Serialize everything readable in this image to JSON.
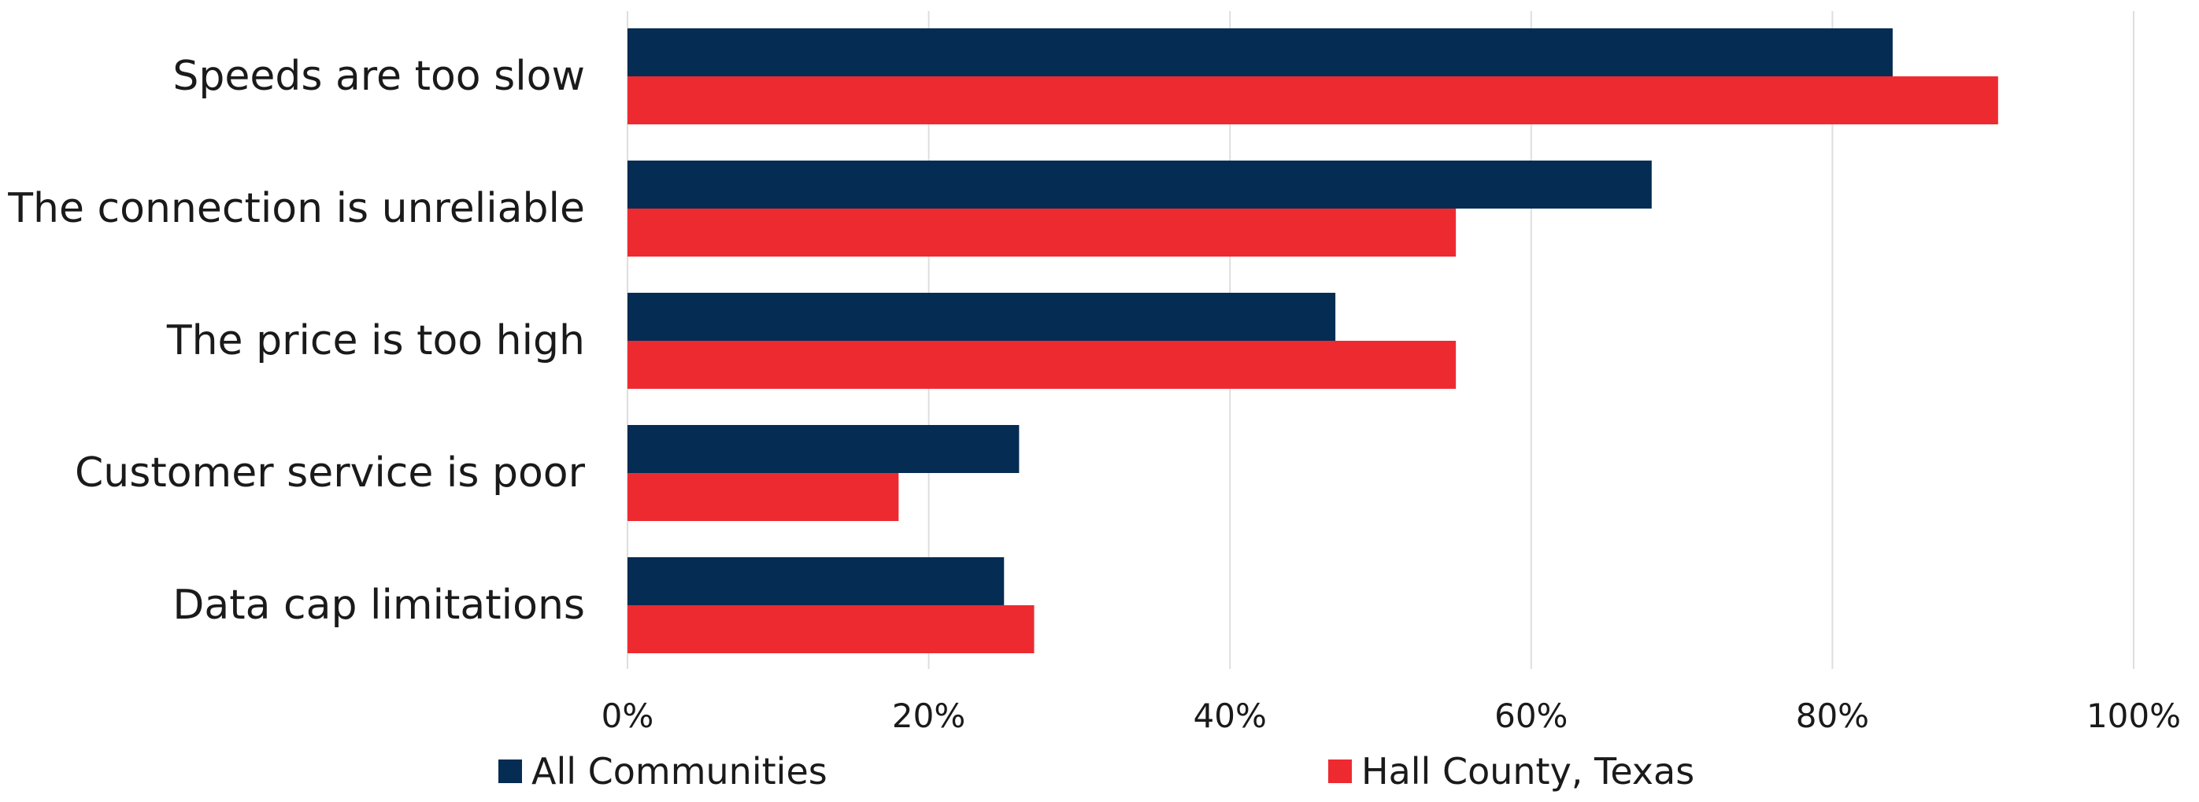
{
  "chart_data": {
    "type": "bar",
    "orientation": "horizontal",
    "categories": [
      "Speeds are too slow",
      "The connection is unreliable",
      "The price is too high",
      "Customer service is poor",
      "Data cap limitations"
    ],
    "series": [
      {
        "name": "All Communities",
        "color": "#052c52",
        "values": [
          84,
          68,
          47,
          26,
          25
        ]
      },
      {
        "name": "Hall County, Texas",
        "color": "#ee2a31",
        "values": [
          91,
          55,
          55,
          18,
          27
        ]
      }
    ],
    "xlim": [
      0,
      100
    ],
    "xticks": [
      0,
      20,
      40,
      60,
      80,
      100
    ],
    "tick_labels": [
      "0%",
      "20%",
      "40%",
      "60%",
      "80%",
      "100%"
    ],
    "grid": true,
    "legend_position": "bottom"
  }
}
